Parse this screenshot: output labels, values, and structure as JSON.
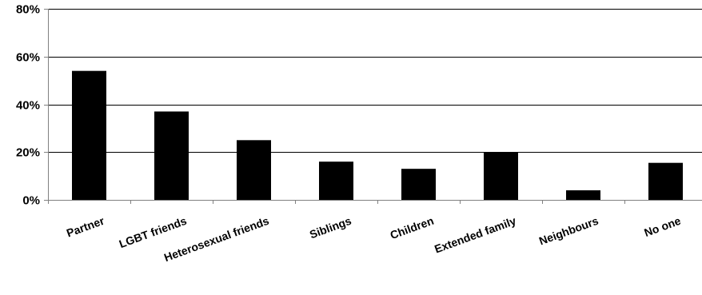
{
  "chart_data": {
    "type": "bar",
    "title": "",
    "xlabel": "",
    "ylabel": "",
    "categories": [
      "Partner",
      "LGBT friends",
      "Heterosexual friends",
      "Siblings",
      "Children",
      "Extended family",
      "Neighbours",
      "No one"
    ],
    "values": [
      54,
      37,
      25,
      16,
      13,
      20,
      4,
      15.5
    ],
    "ylim": [
      0,
      80
    ],
    "yticks": [
      0,
      20,
      40,
      60,
      80
    ],
    "ytick_labels": [
      "0%",
      "20%",
      "40%",
      "60%",
      "80%"
    ],
    "grid": true,
    "legend": "none",
    "colors": {
      "bar": "#000000",
      "grid": "#000000",
      "axis": "#808080"
    }
  }
}
